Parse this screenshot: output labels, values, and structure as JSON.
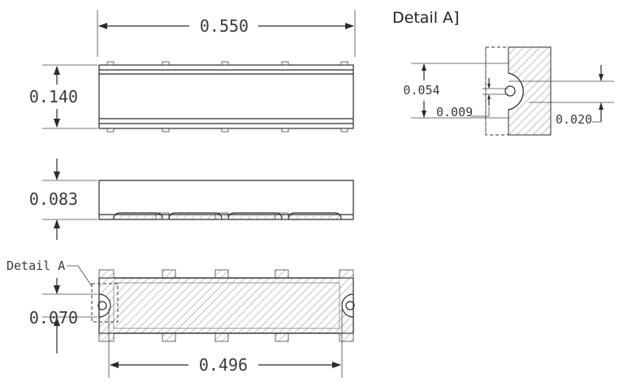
{
  "detail_title": "Detail A]",
  "callout_label": "Detail A",
  "dimensions": {
    "overall_length": "0.550",
    "height_top_view": "0.140",
    "thickness_side_view": "0.083",
    "bottom_slot_width": "0.070",
    "terminal_pitch_span": "0.496"
  },
  "detail_dimensions": {
    "slot_height": "0.054",
    "notch_radius": "0.009",
    "notch_depth": "0.020"
  }
}
